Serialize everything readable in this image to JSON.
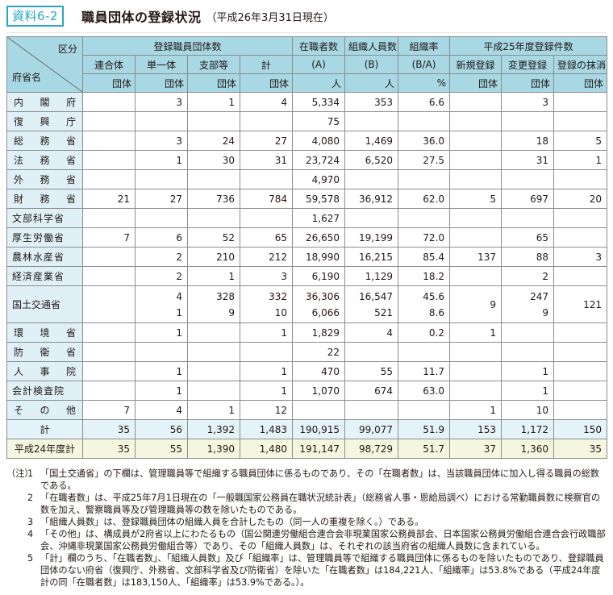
{
  "header": {
    "badge": "資料6-2",
    "title": "職員団体の登録状況",
    "subtitle": "（平成26年3月31日現在）"
  },
  "table": {
    "corner_top": "区分",
    "corner_bottom": "府省名",
    "group_registered": "登録職員団体数",
    "group_h25": "平成25年度登録件数",
    "col_rengo": "連合体",
    "col_tanitsu": "単一体",
    "col_shibu": "支部等",
    "col_kei": "計",
    "col_zaishoku": "在職者数",
    "col_zaishoku_sub": "(A)",
    "col_soshiki_jin": "組織人員数",
    "col_soshiki_jin_sub": "(B)",
    "col_soshiki_rate": "組織率",
    "col_soshiki_rate_sub": "(B/A)",
    "col_shinki": "新規登録",
    "col_henko": "変更登録",
    "col_masho": "登録の抹消",
    "unit_dantai": "団体",
    "unit_nin": "人",
    "unit_pct": "%",
    "rows": [
      {
        "name": [
          "内",
          "閣",
          "府"
        ],
        "c": [
          "",
          "3",
          "1",
          "4",
          "5,334",
          "353",
          "6.6",
          "",
          "3",
          ""
        ]
      },
      {
        "name": [
          "復",
          "興",
          "庁"
        ],
        "c": [
          "",
          "",
          "",
          "",
          "75",
          "",
          "",
          "",
          "",
          ""
        ]
      },
      {
        "name": [
          "総",
          "務",
          "省"
        ],
        "c": [
          "",
          "3",
          "24",
          "27",
          "4,080",
          "1,469",
          "36.0",
          "",
          "18",
          "5"
        ]
      },
      {
        "name": [
          "法",
          "務",
          "省"
        ],
        "c": [
          "",
          "1",
          "30",
          "31",
          "23,724",
          "6,520",
          "27.5",
          "",
          "31",
          "1"
        ]
      },
      {
        "name": [
          "外",
          "務",
          "省"
        ],
        "c": [
          "",
          "",
          "",
          "",
          "4,970",
          "",
          "",
          "",
          "",
          ""
        ]
      },
      {
        "name": [
          "財",
          "務",
          "省"
        ],
        "c": [
          "21",
          "27",
          "736",
          "784",
          "59,578",
          "36,912",
          "62.0",
          "5",
          "697",
          "20"
        ]
      },
      {
        "name": [
          "文部科学省"
        ],
        "c": [
          "",
          "",
          "",
          "",
          "1,627",
          "",
          "",
          "",
          "",
          ""
        ]
      },
      {
        "name": [
          "厚生労働省"
        ],
        "c": [
          "7",
          "6",
          "52",
          "65",
          "26,650",
          "19,199",
          "72.0",
          "",
          "65",
          ""
        ]
      },
      {
        "name": [
          "農林水産省"
        ],
        "c": [
          "",
          "2",
          "210",
          "212",
          "18,990",
          "16,215",
          "85.4",
          "137",
          "88",
          "3"
        ]
      },
      {
        "name": [
          "経済産業省"
        ],
        "c": [
          "",
          "2",
          "1",
          "3",
          "6,190",
          "1,129",
          "18.2",
          "",
          "2",
          ""
        ]
      }
    ],
    "mlit": {
      "name": "国土交通省",
      "line1": [
        "",
        "4",
        "328",
        "332",
        "36,306",
        "16,547",
        "45.6",
        "9",
        "247",
        "121"
      ],
      "line2": [
        "",
        "1",
        "9",
        "10",
        "6,066",
        "521",
        "8.6",
        "",
        "9",
        ""
      ]
    },
    "rows2": [
      {
        "name": [
          "環",
          "境",
          "省"
        ],
        "c": [
          "",
          "1",
          "",
          "1",
          "1,829",
          "4",
          "0.2",
          "1",
          "",
          ""
        ]
      },
      {
        "name": [
          "防",
          "衛",
          "省"
        ],
        "c": [
          "",
          "",
          "",
          "",
          "22",
          "",
          "",
          "",
          "",
          ""
        ]
      },
      {
        "name": [
          "人",
          "事",
          "院"
        ],
        "c": [
          "",
          "1",
          "",
          "1",
          "470",
          "55",
          "11.7",
          "",
          "1",
          ""
        ]
      },
      {
        "name": [
          "会計検査院"
        ],
        "c": [
          "",
          "1",
          "",
          "1",
          "1,070",
          "674",
          "63.0",
          "",
          "1",
          ""
        ]
      },
      {
        "name": [
          "そ",
          "の",
          "他"
        ],
        "c": [
          "7",
          "4",
          "1",
          "12",
          "",
          "",
          "",
          "1",
          "10",
          ""
        ]
      }
    ],
    "total": {
      "name": "計",
      "c": [
        "35",
        "56",
        "1,392",
        "1,483",
        "190,915",
        "99,077",
        "51.9",
        "153",
        "1,172",
        "150"
      ]
    },
    "prev_total": {
      "name": "平成24年度計",
      "c": [
        "35",
        "55",
        "1,390",
        "1,480",
        "191,147",
        "98,729",
        "51.7",
        "37",
        "1,360",
        "35"
      ]
    }
  },
  "notes": {
    "label": "（注）",
    "items": [
      {
        "num": "1",
        "text": "「国土交通省」の下欄は、管理職員等で組織する職員団体に係るものであり、その「在職者数」は、当該職員団体に加入し得る職員の総数である。"
      },
      {
        "num": "2",
        "text": "「在職者数」は、平成25年7月1日現在の「一般職国家公務員在職状況統計表」（総務省人事・恩給局調べ）における常勤職員数に検察官の数を加え、警察職員等及び管理職員等の数を除いたものである。"
      },
      {
        "num": "3",
        "text": "「組織人員数」は、登録職員団体の組織人員を合計したもの（同一人の重複を除く。）である。"
      },
      {
        "num": "4",
        "text": "「その他」は、構成員が2府省以上にわたるもの（国公関連労働組合連合会非現業国家公務員部会、日本国家公務員労働組合連合会行政職部会、沖縄非現業国家公務員労働組合等）であり、その「組織人員数」は、それぞれの該当府省の組織人員数に含まれている。"
      },
      {
        "num": "5",
        "text": "「計」欄のうち、「在職者数」、「組織人員数」及び「組織率」は、管理職員等で組織する職員団体に係るものを除いたものであり、登録職員団体のない府省（復興庁、外務省、文部科学省及び防衛省）を除いた「在職者数」は184,221人、「組織率」は53.8%である（平成24年度計の同「在職者数」は183,150人、「組織率」は53.9%である。）。"
      }
    ]
  }
}
